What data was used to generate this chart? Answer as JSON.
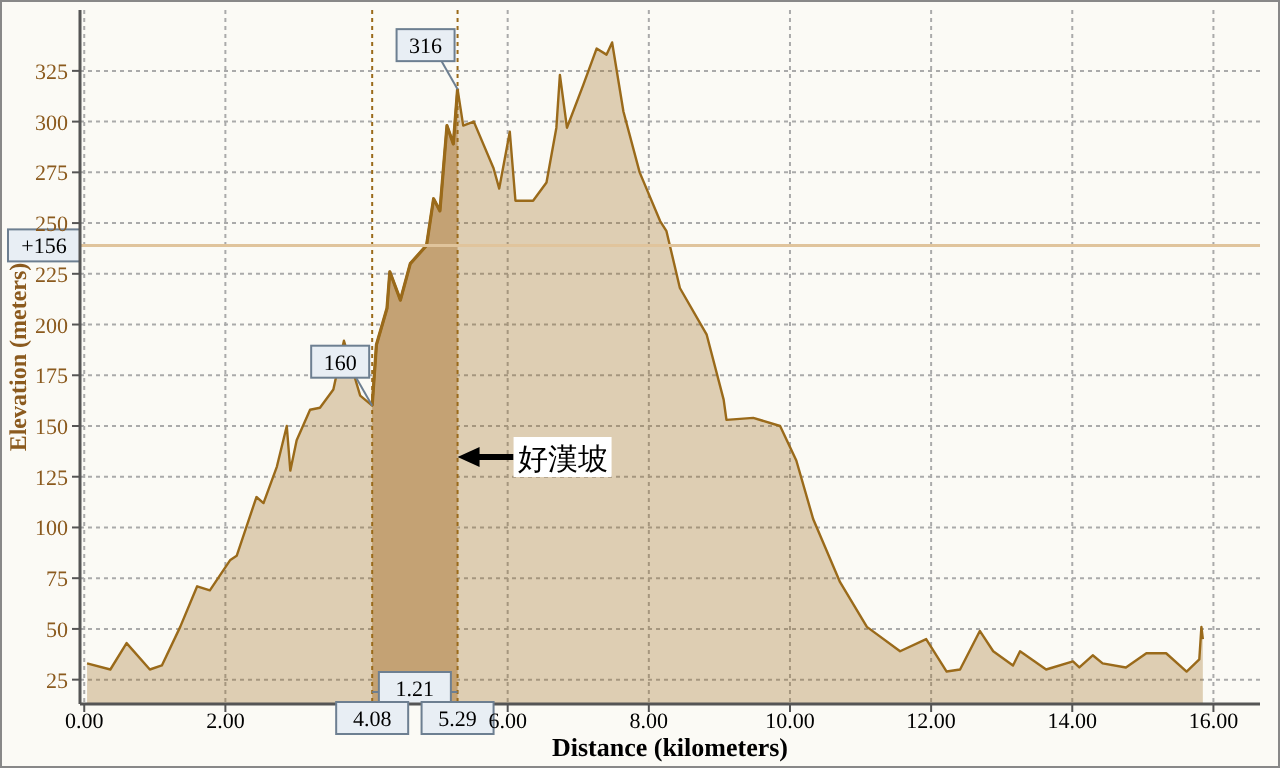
{
  "chart_data": {
    "type": "area",
    "xlabel": "Distance (kilometers)",
    "ylabel": "Elevation (meters)",
    "series": [
      {
        "color": "#9a6a1a",
        "x": [
          0.04,
          0.37,
          0.6,
          0.93,
          1.1,
          1.36,
          1.6,
          1.78,
          2.07,
          2.16,
          2.44,
          2.54,
          2.73,
          2.87,
          2.92,
          3.01,
          3.2,
          3.34,
          3.53,
          3.68,
          3.91,
          4.08,
          4.14,
          4.29,
          4.33,
          4.48,
          4.62,
          4.85,
          4.95,
          5.04,
          5.14,
          5.23,
          5.29,
          5.37,
          5.52,
          5.8,
          5.88,
          6.03,
          6.11,
          6.36,
          6.55,
          6.69,
          6.74,
          6.84,
          7.07,
          7.26,
          7.4,
          7.48,
          7.64,
          7.87,
          8.16,
          8.25,
          8.44,
          8.82,
          9.06,
          9.1,
          9.48,
          9.86,
          10.09,
          10.33,
          10.71,
          11.09,
          11.56,
          11.93,
          12.22,
          12.41,
          12.69,
          12.88,
          13.16,
          13.26,
          13.63,
          14.01,
          14.1,
          14.29,
          14.43,
          14.76,
          15.05,
          15.33,
          15.62,
          15.8,
          15.83,
          15.85
        ],
        "values": [
          33,
          30,
          43,
          30,
          32,
          51,
          71,
          69,
          84,
          86,
          115,
          112,
          130,
          150,
          128,
          143,
          158,
          159,
          168,
          192,
          165,
          160,
          190,
          208,
          226,
          212,
          230,
          239,
          262,
          256,
          298,
          289,
          316,
          298,
          300,
          277,
          267,
          295,
          261,
          261,
          270,
          297,
          323,
          297,
          318,
          336,
          333,
          339,
          305,
          275,
          251,
          246,
          218,
          195,
          163,
          153,
          154,
          150,
          133,
          104,
          73,
          51,
          39,
          45,
          29,
          30,
          49,
          39,
          32,
          39,
          30,
          34,
          31,
          37,
          33,
          31,
          38,
          38,
          29,
          35,
          51,
          45
        ]
      },
      {
        "color": "#c4a274",
        "x": [
          4.08,
          4.14,
          4.29,
          4.33,
          4.48,
          4.62,
          4.85,
          4.95,
          5.04,
          5.14,
          5.23,
          5.29
        ],
        "values": [
          160,
          190,
          208,
          226,
          212,
          230,
          239,
          262,
          256,
          298,
          289,
          316
        ]
      }
    ],
    "xlim": [
      -0.06,
      16.66
    ],
    "ylim": [
      13,
      355
    ],
    "xticks": [
      {
        "value": 0,
        "label": "0.00"
      },
      {
        "value": 2,
        "label": "2.00"
      },
      {
        "value": 4.08,
        "label": "4.08"
      },
      {
        "value": 5.29,
        "label": "5.29"
      },
      {
        "value": 6,
        "label": "6.00"
      },
      {
        "value": 8,
        "label": "8.00"
      },
      {
        "value": 10,
        "label": "10.00"
      },
      {
        "value": 12,
        "label": "12.00"
      },
      {
        "value": 14,
        "label": "14.00"
      },
      {
        "value": 16,
        "label": "16.00"
      }
    ],
    "yticks": [
      25,
      50,
      75,
      100,
      125,
      150,
      175,
      200,
      225,
      250,
      275,
      300,
      325
    ],
    "grid": true,
    "ref_lines": [
      {
        "axis": "y",
        "value": 239,
        "color": "#e0c49c"
      }
    ],
    "annotations": [
      "+156",
      "1.21",
      "好漢坡",
      {
        "text": "160",
        "x": 4.08,
        "y": 160
      },
      {
        "text": "316",
        "x": 5.29,
        "y": 316
      }
    ]
  }
}
